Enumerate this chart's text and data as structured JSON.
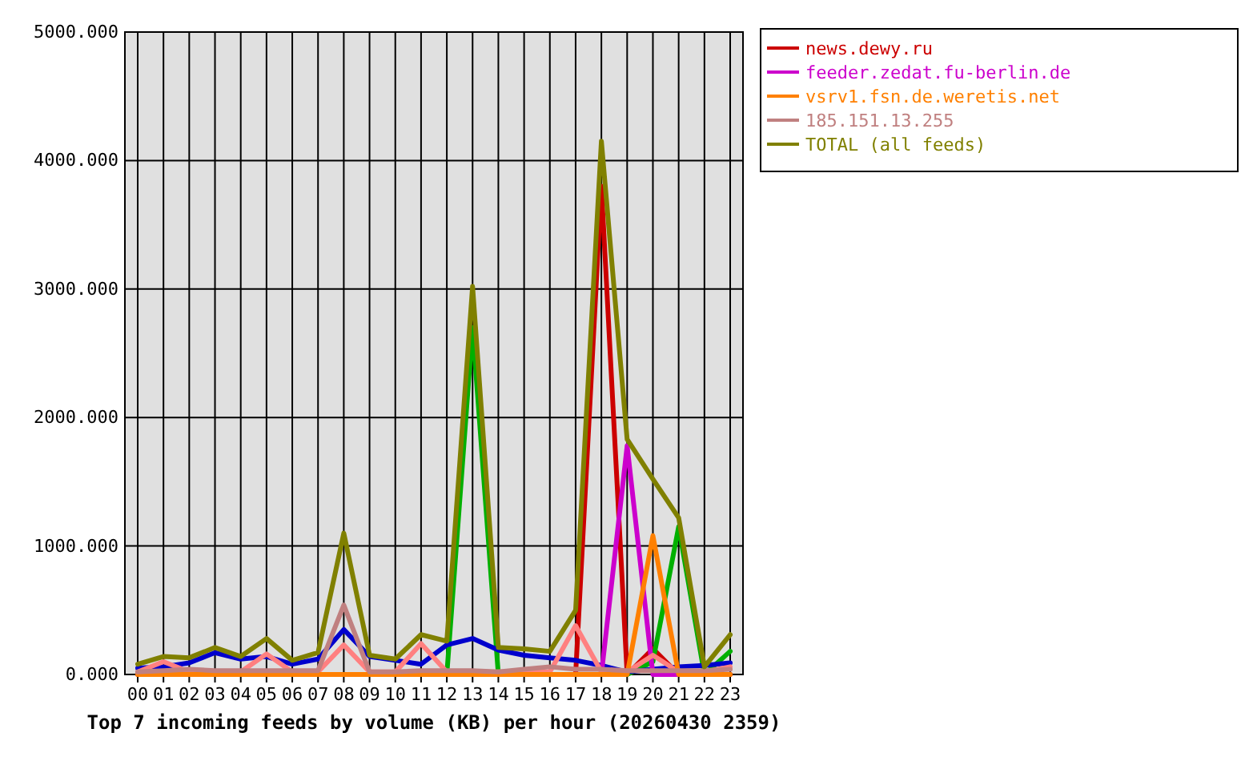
{
  "chart_data": {
    "type": "line",
    "title": "Top 7 incoming feeds by volume (KB) per hour (20260430 2359)",
    "categories": [
      "00",
      "01",
      "02",
      "03",
      "04",
      "05",
      "06",
      "07",
      "08",
      "09",
      "10",
      "11",
      "12",
      "13",
      "14",
      "15",
      "16",
      "17",
      "18",
      "19",
      "20",
      "21",
      "22",
      "23"
    ],
    "ylim": [
      0,
      5000
    ],
    "yticks": [
      {
        "value": 0,
        "label": "0.000"
      },
      {
        "value": 1000,
        "label": "1000.000"
      },
      {
        "value": 2000,
        "label": "2000.000"
      },
      {
        "value": 3000,
        "label": "3000.000"
      },
      {
        "value": 4000,
        "label": "4000.000"
      },
      {
        "value": 5000,
        "label": "5000.000"
      }
    ],
    "grid": true,
    "legend": "right",
    "series": [
      {
        "name": "news.dewy.ru",
        "color": "#cc0000",
        "values": [
          0,
          0,
          0,
          0,
          0,
          0,
          0,
          0,
          0,
          0,
          0,
          0,
          0,
          0,
          0,
          0,
          0,
          0,
          3800,
          0,
          200,
          0,
          0,
          0
        ]
      },
      {
        "color": "#00b000",
        "values": [
          null,
          null,
          null,
          null,
          null,
          null,
          null,
          null,
          null,
          null,
          null,
          null,
          0,
          2700,
          0,
          null,
          null,
          null,
          null,
          0,
          100,
          1150,
          0,
          180
        ]
      },
      {
        "color": "#0000cc",
        "values": [
          50,
          60,
          90,
          170,
          120,
          140,
          80,
          120,
          350,
          140,
          110,
          80,
          230,
          280,
          190,
          150,
          130,
          110,
          70,
          20,
          40,
          60,
          70,
          90
        ]
      },
      {
        "name": "feeder.zedat.fu-berlin.de",
        "color": "#cc00cc",
        "values": [
          null,
          null,
          null,
          null,
          null,
          null,
          null,
          null,
          null,
          null,
          null,
          null,
          null,
          null,
          null,
          null,
          null,
          null,
          0,
          1780,
          0,
          0,
          null,
          null
        ]
      },
      {
        "color": "#ff8080",
        "values": [
          20,
          100,
          20,
          20,
          20,
          160,
          20,
          20,
          230,
          20,
          20,
          240,
          20,
          20,
          20,
          20,
          20,
          380,
          20,
          20,
          150,
          20,
          20,
          60
        ]
      },
      {
        "name": "vsrv1.fsn.de.weretis.net",
        "color": "#ff8000",
        "values": [
          0,
          0,
          0,
          0,
          0,
          0,
          0,
          0,
          0,
          0,
          0,
          0,
          0,
          0,
          0,
          0,
          0,
          0,
          0,
          0,
          1080,
          0,
          0,
          0
        ]
      },
      {
        "name": "185.151.13.255",
        "color": "#c08080",
        "values": [
          20,
          30,
          40,
          30,
          30,
          30,
          30,
          30,
          540,
          20,
          20,
          30,
          30,
          30,
          20,
          40,
          60,
          40,
          40,
          30,
          30,
          30,
          30,
          40
        ]
      },
      {
        "name": "TOTAL (all feeds)",
        "color": "#808000",
        "values": [
          80,
          140,
          130,
          210,
          140,
          280,
          110,
          170,
          1100,
          150,
          120,
          310,
          260,
          3020,
          210,
          200,
          180,
          500,
          4150,
          1830,
          1520,
          1220,
          60,
          310
        ]
      }
    ]
  }
}
